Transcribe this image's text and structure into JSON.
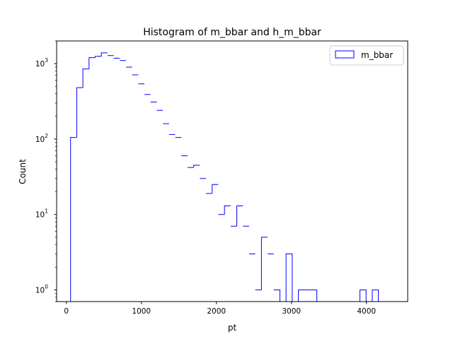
{
  "chart_data": {
    "type": "histogram-step",
    "title": "Histogram of m_bbar and h_m_bbar",
    "xlabel": "pt",
    "ylabel": "Count",
    "xlim": [
      -130,
      4550
    ],
    "ylim": [
      0.7,
      2000
    ],
    "yscale": "log",
    "grid": false,
    "legend_position": "top-right",
    "x_ticks": [
      {
        "value": 0,
        "label": "0"
      },
      {
        "value": 1000,
        "label": "1000"
      },
      {
        "value": 2000,
        "label": "2000"
      },
      {
        "value": 3000,
        "label": "3000"
      },
      {
        "value": 4000,
        "label": "4000"
      }
    ],
    "y_ticks": [
      {
        "value": 1,
        "base": "10",
        "exp": "0"
      },
      {
        "value": 10,
        "base": "10",
        "exp": "1"
      },
      {
        "value": 100,
        "base": "10",
        "exp": "2"
      },
      {
        "value": 1000,
        "base": "10",
        "exp": "3"
      }
    ],
    "series": [
      {
        "name": "m_bbar",
        "color": "#0000ff",
        "bin_edges": [
          56.0,
          138.1,
          220.2,
          302.2,
          384.3,
          466.4,
          548.4,
          630.5,
          712.6,
          794.6,
          876.7,
          958.8,
          1040.9,
          1122.9,
          1205.0,
          1287.1,
          1369.1,
          1451.2,
          1533.3,
          1615.4,
          1697.4,
          1779.5,
          1861.6,
          1943.6,
          2025.7,
          2107.8,
          2189.8,
          2271.9,
          2354.0,
          2436.1,
          2518.1,
          2600.2,
          2682.3,
          2764.3,
          2846.4,
          2928.5,
          3010.6,
          3092.6,
          3174.7,
          3256.8,
          3338.8,
          3420.9,
          3503.0,
          3585.0,
          3667.1,
          3749.2,
          3831.3,
          3913.3,
          3995.4,
          4077.5,
          4159.5,
          4241.6,
          4323.7
        ],
        "counts": [
          105,
          480,
          850,
          1200,
          1250,
          1390,
          1280,
          1180,
          1100,
          900,
          710,
          540,
          390,
          310,
          240,
          160,
          115,
          105,
          60,
          42,
          45,
          30,
          19,
          25,
          10,
          13,
          7,
          13,
          7,
          3,
          1,
          5,
          3,
          1,
          0,
          3,
          0,
          1,
          1,
          1,
          0,
          0,
          0,
          0,
          0,
          0,
          0,
          1,
          0,
          1,
          0,
          0
        ]
      }
    ]
  }
}
